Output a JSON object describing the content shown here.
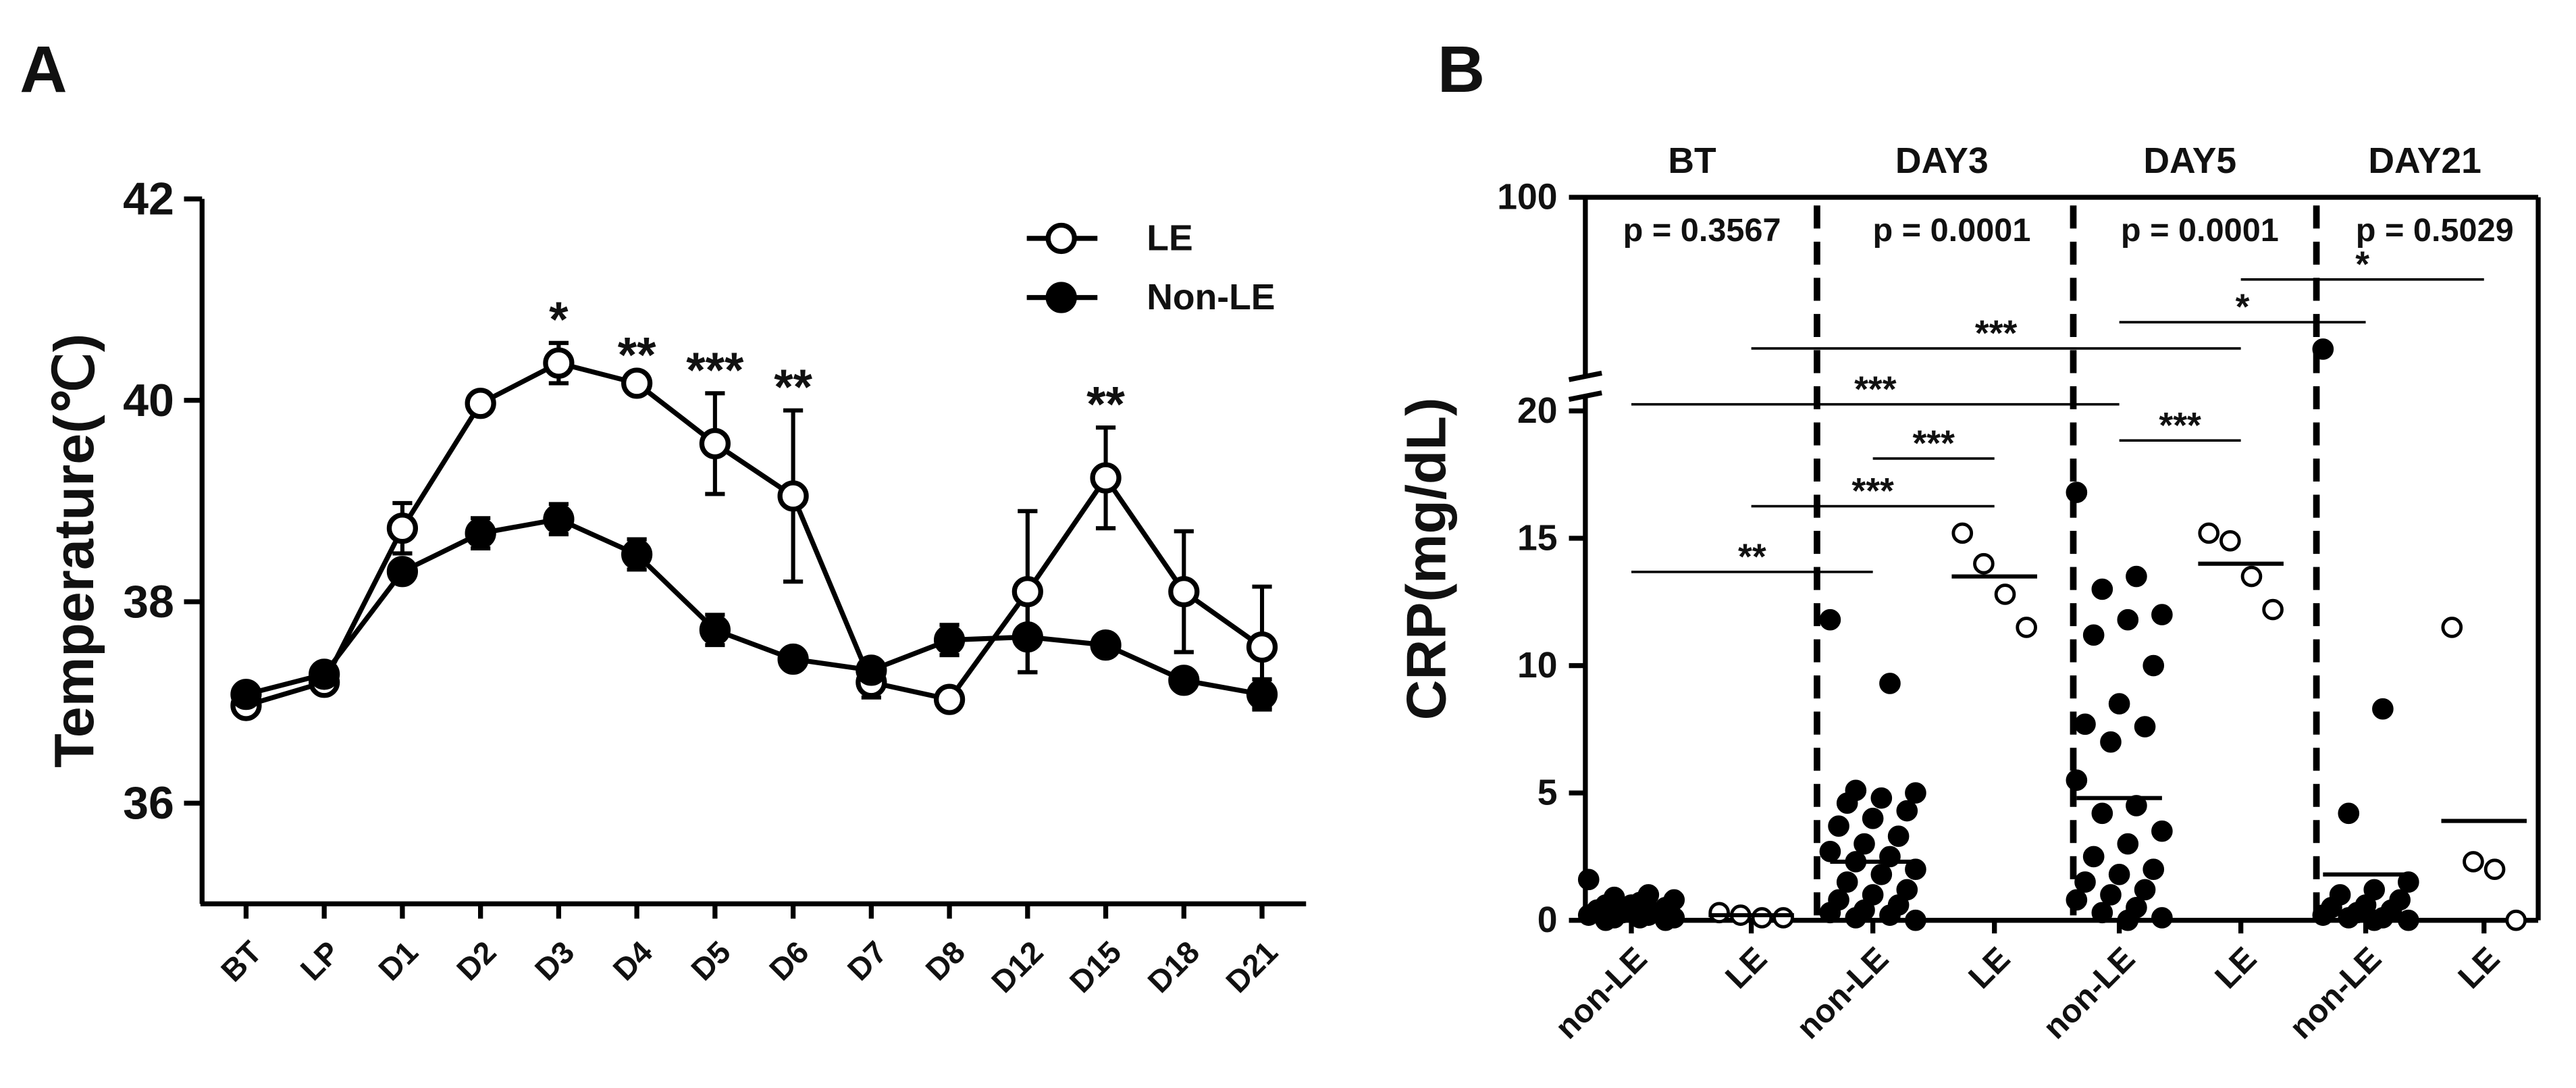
{
  "chart_data": [
    {
      "type": "line",
      "panel": "A",
      "ylabel": "Temperature(℃)",
      "categories": [
        "BT",
        "LP",
        "D1",
        "D2",
        "D3",
        "D4",
        "D5",
        "D6",
        "D7",
        "D8",
        "D12",
        "D15",
        "D18",
        "D21"
      ],
      "series": [
        {
          "name": "LE",
          "color": "#000000",
          "marker_fill": "#ffffff",
          "values": [
            36.97,
            37.2,
            38.73,
            39.97,
            40.37,
            40.17,
            39.57,
            39.05,
            37.2,
            37.03,
            38.1,
            39.23,
            38.1,
            37.55
          ],
          "errors": [
            0.05,
            0.05,
            0.25,
            0.05,
            0.2,
            0.05,
            0.5,
            0.85,
            0.15,
            0.05,
            0.8,
            0.5,
            0.6,
            0.6
          ]
        },
        {
          "name": "Non-LE",
          "color": "#000000",
          "marker_fill": "#000000",
          "values": [
            37.08,
            37.28,
            38.3,
            38.68,
            38.82,
            38.47,
            37.72,
            37.43,
            37.32,
            37.62,
            37.65,
            37.57,
            37.22,
            37.08
          ],
          "errors": [
            0.05,
            0.05,
            0.1,
            0.15,
            0.15,
            0.15,
            0.15,
            0.05,
            0.1,
            0.15,
            0.35,
            0.1,
            0.05,
            0.15
          ]
        }
      ],
      "annotations": [
        {
          "category": "D3",
          "text": "*"
        },
        {
          "category": "D4",
          "text": "**"
        },
        {
          "category": "D5",
          "text": "***"
        },
        {
          "category": "D6",
          "text": "**"
        },
        {
          "category": "D15",
          "text": "**"
        }
      ],
      "ylim": [
        35,
        42
      ],
      "yticks": [
        36,
        38,
        40,
        42
      ],
      "legend": "upper right"
    },
    {
      "type": "strip",
      "panel": "B",
      "ylabel": "CRP(mg/dL)",
      "ylim": [
        0,
        100
      ],
      "ybreak": 20,
      "yticks": [
        0,
        5,
        10,
        15,
        20,
        100
      ],
      "groups": [
        {
          "name": "BT",
          "p_label": "p = 0.3567",
          "subgroups": [
            {
              "name": "non-LE",
              "marker_fill": "#000000",
              "center_line": 0.3,
              "values": [
                1.6,
                1.0,
                0.9,
                0.8,
                0.7,
                0.6,
                0.5,
                0.5,
                0.4,
                0.3,
                0.3,
                0.2,
                0.2,
                0.1,
                0.1,
                0.1,
                0.0,
                0.0,
                0.6,
                0.4
              ]
            },
            {
              "name": "LE",
              "marker_fill": "#ffffff",
              "center_line": 0.2,
              "values": [
                0.3,
                0.2,
                0.1,
                0.1
              ]
            }
          ]
        },
        {
          "name": "DAY3",
          "p_label": "p = 0.0001",
          "subgroups": [
            {
              "name": "non-LE",
              "marker_fill": "#000000",
              "center_line": 2.3,
              "values": [
                11.8,
                9.3,
                5.1,
                5.0,
                4.8,
                4.6,
                4.3,
                4.0,
                3.7,
                3.3,
                3.0,
                2.7,
                2.5,
                2.3,
                2.0,
                1.8,
                1.5,
                1.2,
                1.0,
                0.8,
                0.6,
                0.4,
                0.3,
                0.2,
                0.1,
                0.0
              ]
            },
            {
              "name": "LE",
              "marker_fill": "#ffffff",
              "center_line": 13.5,
              "values": [
                15.2,
                14.0,
                12.8,
                11.5
              ]
            }
          ]
        },
        {
          "name": "DAY5",
          "p_label": "p = 0.0001",
          "subgroups": [
            {
              "name": "non-LE",
              "marker_fill": "#000000",
              "center_line": 4.8,
              "values": [
                16.8,
                13.5,
                13.0,
                12.0,
                11.8,
                11.2,
                10.0,
                8.5,
                7.7,
                7.6,
                7.0,
                5.5,
                4.5,
                4.2,
                3.5,
                3.0,
                2.5,
                2.0,
                1.8,
                1.5,
                1.2,
                1.0,
                0.8,
                0.5,
                0.3,
                0.1,
                0.0
              ]
            },
            {
              "name": "LE",
              "marker_fill": "#ffffff",
              "center_line": 14.0,
              "values": [
                15.2,
                14.9,
                13.5,
                12.2
              ]
            }
          ]
        },
        {
          "name": "DAY21",
          "p_label": "p = 0.5029",
          "subgroups": [
            {
              "name": "non-LE",
              "marker_fill": "#000000",
              "center_line": 1.8,
              "values": [
                34,
                8.3,
                4.2,
                1.5,
                1.2,
                1.0,
                0.8,
                0.6,
                0.5,
                0.4,
                0.3,
                0.2,
                0.1,
                0.1,
                0.0,
                0.0
              ]
            },
            {
              "name": "LE",
              "marker_fill": "#ffffff",
              "center_line": 3.9,
              "values": [
                11.5,
                2.3,
                2.0,
                0.0
              ]
            }
          ]
        }
      ],
      "comparisons": [
        {
          "between": [
            0,
            2
          ],
          "label": "**"
        },
        {
          "between": [
            1,
            3
          ],
          "label": "***"
        },
        {
          "between": [
            2,
            3
          ],
          "label": "***"
        },
        {
          "between": [
            4,
            5
          ],
          "label": "***"
        },
        {
          "between": [
            0,
            4
          ],
          "label": "***"
        },
        {
          "between": [
            1,
            5
          ],
          "label": "***"
        },
        {
          "between": [
            4,
            6
          ],
          "label": "*"
        },
        {
          "between": [
            5,
            7
          ],
          "label": "*"
        }
      ]
    }
  ]
}
